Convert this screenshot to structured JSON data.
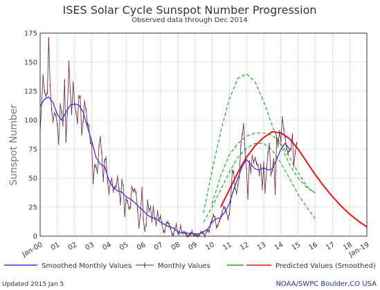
{
  "chart_data": {
    "type": "line",
    "title": "ISES Solar Cycle Sunspot Number Progression",
    "subtitle": "Observed data through Dec 2014",
    "ylabel": "Sunspot Number",
    "xlabel": "",
    "xlim": [
      2000.0,
      2019.0
    ],
    "ylim": [
      0,
      175
    ],
    "yticks": [
      0,
      25,
      50,
      75,
      100,
      125,
      150,
      175
    ],
    "xtick_labels": [
      {
        "x": 2000,
        "label": "Jan-00"
      },
      {
        "x": 2001,
        "label": "01"
      },
      {
        "x": 2002,
        "label": "02"
      },
      {
        "x": 2003,
        "label": "03"
      },
      {
        "x": 2004,
        "label": "04"
      },
      {
        "x": 2005,
        "label": "05"
      },
      {
        "x": 2006,
        "label": "06"
      },
      {
        "x": 2007,
        "label": "07"
      },
      {
        "x": 2008,
        "label": "08"
      },
      {
        "x": 2009,
        "label": "09"
      },
      {
        "x": 2010,
        "label": "10"
      },
      {
        "x": 2011,
        "label": "11"
      },
      {
        "x": 2012,
        "label": "12"
      },
      {
        "x": 2013,
        "label": "13"
      },
      {
        "x": 2014,
        "label": "14"
      },
      {
        "x": 2015,
        "label": "15"
      },
      {
        "x": 2016,
        "label": "16"
      },
      {
        "x": 2017,
        "label": "17"
      },
      {
        "x": 2018,
        "label": "18"
      },
      {
        "x": 2019,
        "label": "Jan-19"
      }
    ],
    "grid": true,
    "legend_position": "bottom",
    "series": [
      {
        "name": "Monthly Values",
        "color": "#6b1a3a",
        "marker": "tick",
        "x": [
          2000.0,
          2000.08,
          2000.17,
          2000.25,
          2000.33,
          2000.42,
          2000.5,
          2000.58,
          2000.67,
          2000.75,
          2000.83,
          2000.92,
          2001.0,
          2001.08,
          2001.17,
          2001.25,
          2001.33,
          2001.42,
          2001.5,
          2001.58,
          2001.67,
          2001.75,
          2001.83,
          2001.92,
          2002.0,
          2002.08,
          2002.17,
          2002.25,
          2002.33,
          2002.42,
          2002.5,
          2002.58,
          2002.67,
          2002.75,
          2002.83,
          2002.92,
          2003.0,
          2003.08,
          2003.17,
          2003.25,
          2003.33,
          2003.42,
          2003.5,
          2003.58,
          2003.67,
          2003.75,
          2003.83,
          2003.92,
          2004.0,
          2004.08,
          2004.17,
          2004.25,
          2004.33,
          2004.42,
          2004.5,
          2004.58,
          2004.67,
          2004.75,
          2004.83,
          2004.92,
          2005.0,
          2005.08,
          2005.17,
          2005.25,
          2005.33,
          2005.42,
          2005.5,
          2005.58,
          2005.67,
          2005.75,
          2005.83,
          2005.92,
          2006.0,
          2006.08,
          2006.17,
          2006.25,
          2006.33,
          2006.42,
          2006.5,
          2006.58,
          2006.67,
          2006.75,
          2006.83,
          2006.92,
          2007.0,
          2007.08,
          2007.17,
          2007.25,
          2007.33,
          2007.42,
          2007.5,
          2007.58,
          2007.67,
          2007.75,
          2007.83,
          2007.92,
          2008.0,
          2008.08,
          2008.17,
          2008.25,
          2008.33,
          2008.42,
          2008.5,
          2008.58,
          2008.67,
          2008.75,
          2008.83,
          2008.92,
          2009.0,
          2009.08,
          2009.17,
          2009.25,
          2009.33,
          2009.42,
          2009.5,
          2009.58,
          2009.67,
          2009.75,
          2009.83,
          2009.92,
          2010.0,
          2010.08,
          2010.17,
          2010.25,
          2010.33,
          2010.42,
          2010.5,
          2010.58,
          2010.67,
          2010.75,
          2010.83,
          2010.92,
          2011.0,
          2011.08,
          2011.17,
          2011.25,
          2011.33,
          2011.42,
          2011.5,
          2011.58,
          2011.67,
          2011.75,
          2011.83,
          2011.92,
          2012.0,
          2012.08,
          2012.17,
          2012.25,
          2012.33,
          2012.42,
          2012.5,
          2012.58,
          2012.67,
          2012.75,
          2012.83,
          2012.92,
          2013.0,
          2013.08,
          2013.17,
          2013.25,
          2013.33,
          2013.42,
          2013.5,
          2013.58,
          2013.67,
          2013.75,
          2013.83,
          2013.92,
          2014.0,
          2014.08,
          2014.17,
          2014.25,
          2014.33,
          2014.42,
          2014.5,
          2014.58,
          2014.67,
          2014.75,
          2014.83,
          2014.92
        ],
        "y": [
          90,
          112,
          138,
          125,
          121,
          124,
          170,
          130,
          109,
          99,
          106,
          104,
          96,
          80,
          113,
          107,
          96,
          134,
          82,
          106,
          150,
          125,
          106,
          132,
          114,
          107,
          98,
          120,
          120,
          88,
          99,
          116,
          109,
          97,
          95,
          81,
          79,
          46,
          61,
          60,
          55,
          77,
          85,
          72,
          48,
          65,
          67,
          47,
          37,
          46,
          49,
          39,
          42,
          43,
          51,
          41,
          28,
          48,
          43,
          18,
          32,
          30,
          24,
          25,
          42,
          39,
          40,
          37,
          22,
          8,
          18,
          41,
          15,
          5,
          10,
          30,
          22,
          25,
          13,
          25,
          15,
          10,
          21,
          14,
          17,
          11,
          4,
          4,
          11,
          12,
          10,
          7,
          2,
          1,
          6,
          10,
          3,
          2,
          9,
          3,
          3,
          3,
          1,
          0,
          1,
          2,
          4,
          1,
          1,
          1,
          0,
          1,
          3,
          3,
          3,
          0,
          4,
          5,
          4,
          11,
          14,
          18,
          16,
          8,
          9,
          13,
          16,
          20,
          25,
          24,
          21,
          15,
          19,
          30,
          56,
          55,
          42,
          37,
          44,
          51,
          78,
          88,
          96,
          73,
          58,
          33,
          64,
          55,
          69,
          64,
          67,
          63,
          61,
          53,
          61,
          41,
          63,
          38,
          58,
          72,
          79,
          53,
          57,
          66,
          37,
          85,
          78,
          90,
          82,
          102,
          92,
          85,
          76,
          72,
          74,
          75,
          87,
          61,
          72,
          80
        ]
      },
      {
        "name": "Smoothed Monthly Values",
        "color": "#3333dd",
        "x": [
          2000.0,
          2000.25,
          2000.5,
          2000.75,
          2001.0,
          2001.25,
          2001.5,
          2001.75,
          2002.0,
          2002.25,
          2002.5,
          2002.75,
          2003.0,
          2003.25,
          2003.5,
          2003.75,
          2004.0,
          2004.25,
          2004.5,
          2004.75,
          2005.0,
          2005.25,
          2005.5,
          2005.75,
          2006.0,
          2006.25,
          2006.5,
          2006.75,
          2007.0,
          2007.25,
          2007.5,
          2007.75,
          2008.0,
          2008.25,
          2008.5,
          2008.75,
          2009.0,
          2009.25,
          2009.5,
          2009.75,
          2010.0,
          2010.25,
          2010.5,
          2010.75,
          2011.0,
          2011.25,
          2011.5,
          2011.75,
          2012.0,
          2012.25,
          2012.5,
          2012.75,
          2013.0,
          2013.25,
          2013.5,
          2013.75,
          2014.0,
          2014.25,
          2014.5
        ],
        "y": [
          112,
          118,
          120,
          115,
          105,
          100,
          107,
          113,
          114,
          113,
          107,
          94,
          82,
          68,
          62,
          60,
          48,
          42,
          39,
          38,
          34,
          32,
          29,
          25,
          22,
          18,
          16,
          15,
          12,
          10,
          8,
          7,
          4,
          3,
          3,
          2,
          2,
          2,
          4,
          6,
          12,
          15,
          16,
          21,
          28,
          40,
          50,
          60,
          66,
          62,
          58,
          57,
          59,
          57,
          58,
          66,
          75,
          80,
          75
        ]
      },
      {
        "name": "Predicted Values (Smoothed)",
        "color": "#ee1111",
        "x": [
          2010.5,
          2011.0,
          2011.5,
          2012.0,
          2012.5,
          2013.0,
          2013.5,
          2014.0,
          2014.5,
          2015.0,
          2015.5,
          2016.0,
          2016.5,
          2017.0,
          2017.5,
          2018.0,
          2018.5,
          2019.0
        ],
        "y": [
          25,
          40,
          55,
          68,
          78,
          85,
          90,
          89,
          84,
          75,
          64,
          53,
          43,
          34,
          26,
          19,
          13,
          8
        ]
      },
      {
        "name": "Prediction upper bound",
        "color": "#22aa22",
        "dashed": true,
        "x": [
          2009.5,
          2010.0,
          2010.5,
          2011.0,
          2011.5,
          2012.0,
          2012.5,
          2013.0,
          2013.5,
          2014.0,
          2014.5,
          2015.0,
          2015.5,
          2016.0
        ],
        "y": [
          20,
          57,
          90,
          118,
          136,
          140,
          133,
          116,
          95,
          78,
          62,
          50,
          42,
          37
        ]
      },
      {
        "name": "Prediction mid bound",
        "color": "#22aa22",
        "dashed": true,
        "x": [
          2010.0,
          2010.5,
          2011.0,
          2011.5,
          2012.0,
          2012.5,
          2013.0,
          2013.5,
          2014.0,
          2014.5,
          2015.0,
          2015.5,
          2016.0
        ],
        "y": [
          28,
          52,
          70,
          80,
          86,
          89,
          89,
          87,
          80,
          68,
          55,
          43,
          37
        ]
      },
      {
        "name": "Prediction lower bound",
        "color": "#22aa22",
        "dashed": true,
        "x": [
          2009.5,
          2010.0,
          2010.5,
          2011.0,
          2011.5,
          2012.0,
          2012.5,
          2013.0,
          2013.5,
          2014.0,
          2014.5,
          2015.0,
          2015.5,
          2016.0
        ],
        "y": [
          12,
          25,
          40,
          55,
          68,
          76,
          80,
          80,
          74,
          63,
          50,
          36,
          25,
          15
        ]
      }
    ]
  },
  "legend": {
    "smoothed": "Smoothed Monthly Values",
    "monthly": "Monthly Values",
    "predicted": "Predicted Values (Smoothed)"
  },
  "footer": {
    "updated": "Updated 2015 Jan  5",
    "credit": "NOAA/SWPC Boulder,CO USA"
  },
  "colors": {
    "grid": "#999999",
    "axis": "#333333",
    "monthly": "#6b1a3a",
    "smoothed": "#3333dd",
    "predicted": "#ee1111",
    "bounds": "#22aa22"
  }
}
